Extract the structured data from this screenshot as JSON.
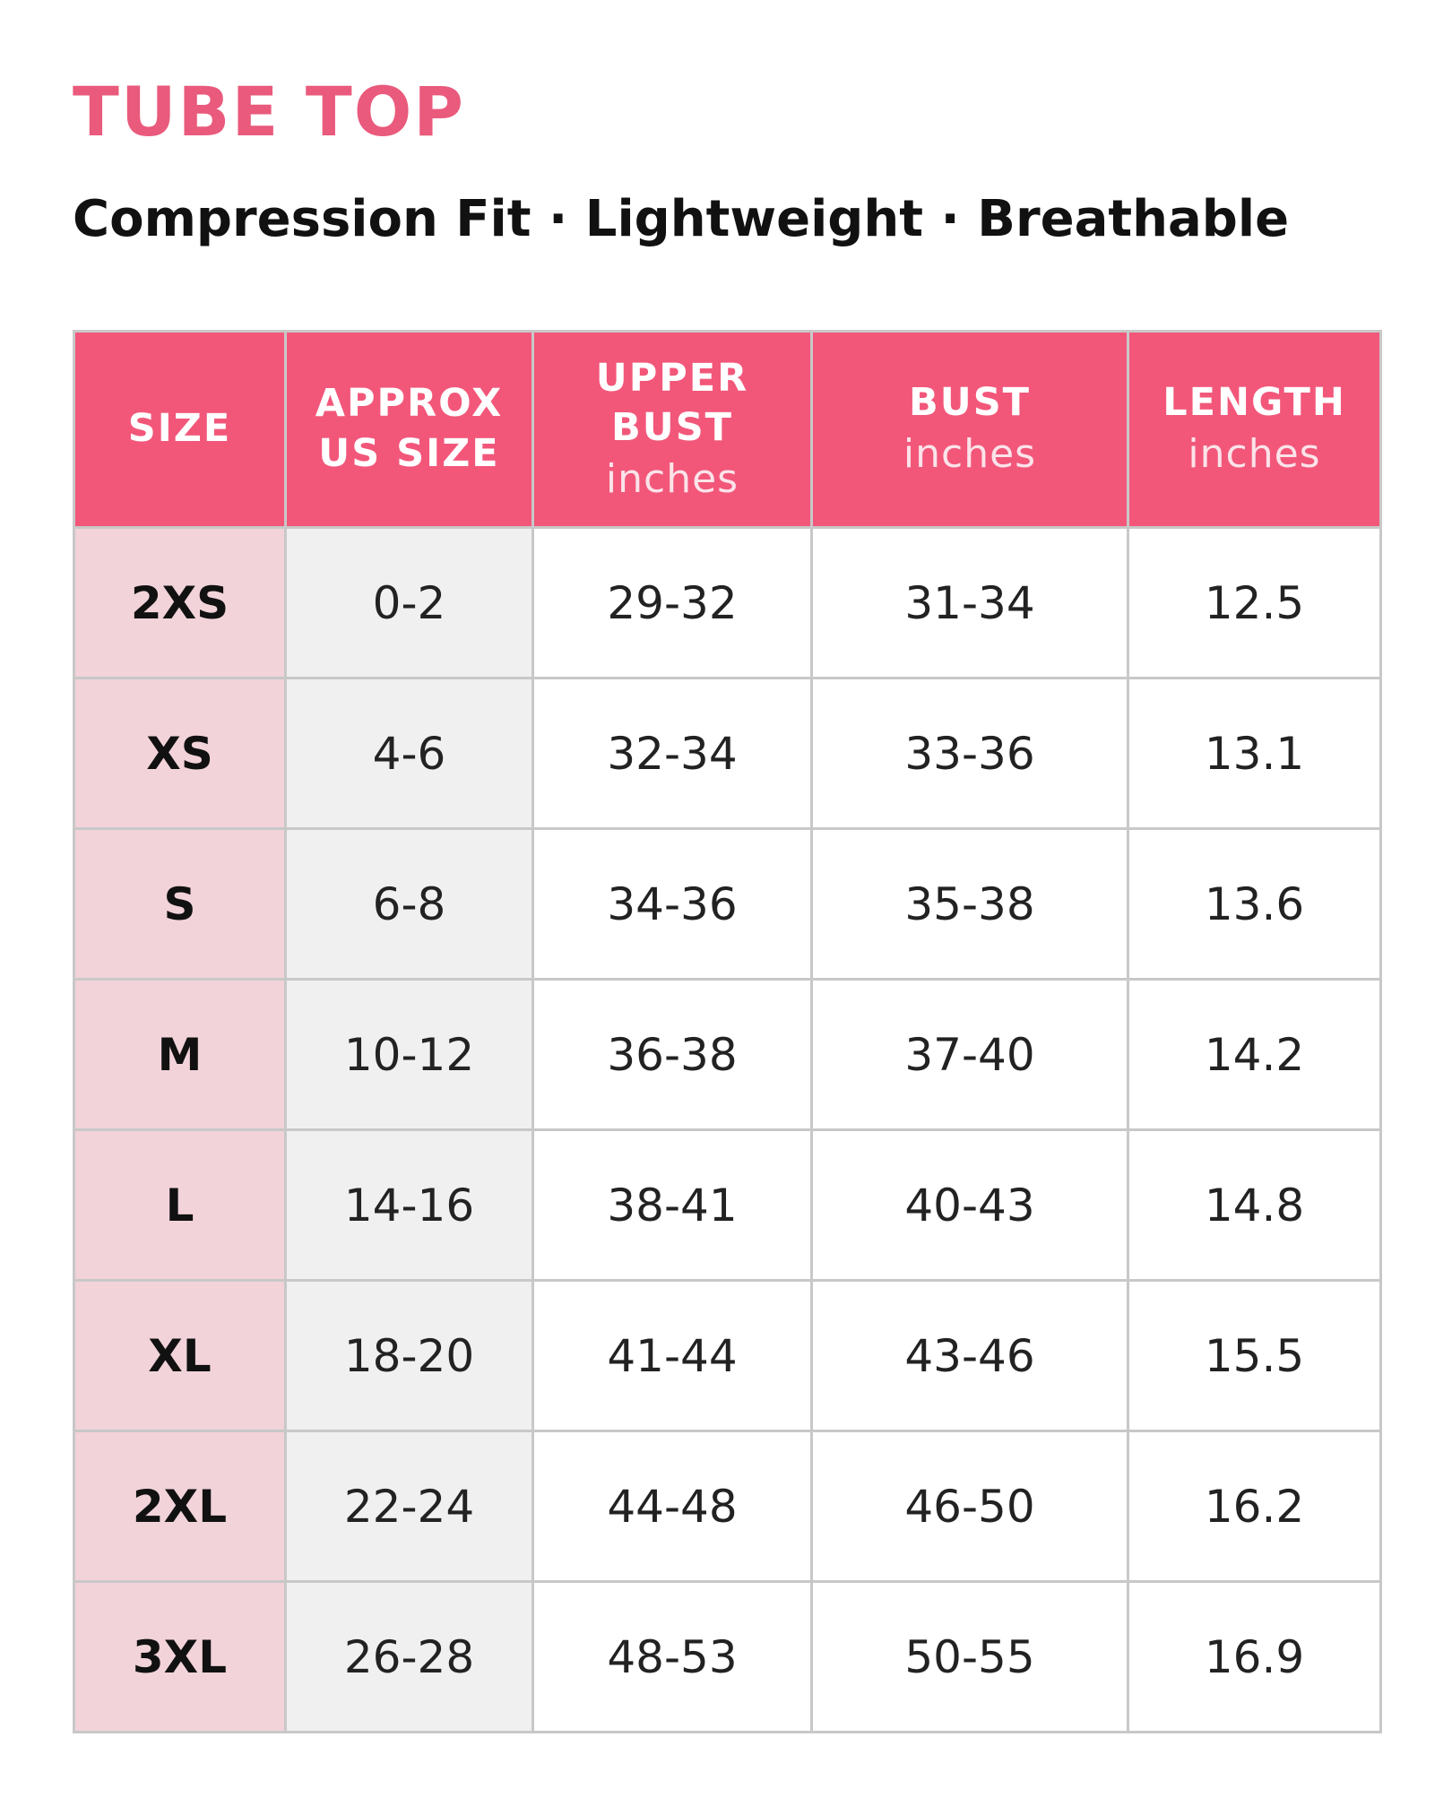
{
  "header": {
    "title": "TUBE TOP",
    "subtitle": "Compression Fit · Lightweight · Breathable"
  },
  "table": {
    "columns": [
      {
        "label": "SIZE"
      },
      {
        "label": "APPROX US SIZE"
      },
      {
        "label": "UPPER BUST",
        "unit": "inches"
      },
      {
        "label": "BUST",
        "unit": "inches"
      },
      {
        "label": "LENGTH",
        "unit": "inches"
      }
    ],
    "rows": [
      [
        "2XS",
        "0-2",
        "29-32",
        "31-34",
        "12.5"
      ],
      [
        "XS",
        "4-6",
        "32-34",
        "33-36",
        "13.1"
      ],
      [
        "S",
        "6-8",
        "34-36",
        "35-38",
        "13.6"
      ],
      [
        "M",
        "10-12",
        "36-38",
        "37-40",
        "14.2"
      ],
      [
        "L",
        "14-16",
        "38-41",
        "40-43",
        "14.8"
      ],
      [
        "XL",
        "18-20",
        "41-44",
        "43-46",
        "15.5"
      ],
      [
        "2XL",
        "22-24",
        "44-48",
        "46-50",
        "16.2"
      ],
      [
        "3XL",
        "26-28",
        "48-53",
        "50-55",
        "16.9"
      ]
    ]
  }
}
